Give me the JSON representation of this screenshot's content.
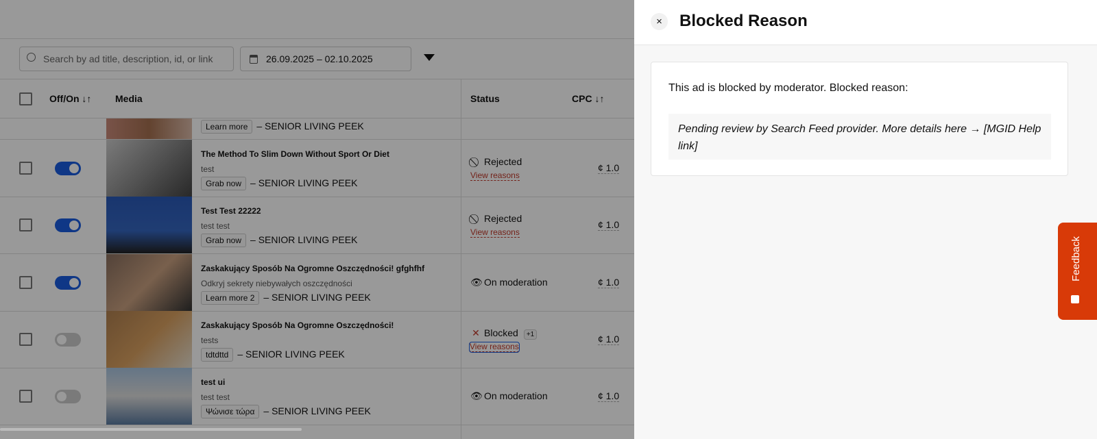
{
  "toolbar": {
    "search_placeholder": "Search by ad title, description, id, or link",
    "date_range": "26.09.2025 – 02.10.2025"
  },
  "table": {
    "headers": {
      "toggle": "Off/On ↓↑",
      "media": "Media",
      "status": "Status",
      "cpc": "CPC ↓↑"
    },
    "partial_row": {
      "cta": "Learn more",
      "brand": "– SENIOR LIVING PEEK"
    },
    "rows": [
      {
        "enabled": true,
        "title": "The Method To Slim Down Without Sport Or Diet",
        "desc": "test",
        "cta": "Grab now",
        "brand": "– SENIOR LIVING PEEK",
        "status": "Rejected",
        "status_icon": "block-icon",
        "reasons": "View reasons",
        "cpc": "¢ 1.0"
      },
      {
        "enabled": true,
        "title": "Test Test 22222",
        "desc": "test test",
        "cta": "Grab now",
        "brand": "– SENIOR LIVING PEEK",
        "status": "Rejected",
        "status_icon": "block-icon",
        "reasons": "View reasons",
        "cpc": "¢ 1.0"
      },
      {
        "enabled": true,
        "title": "Zaskakujący Sposób Na Ogromne Oszczędności! gfghfhf",
        "desc": "Odkryj sekrety niebywałych oszczędności",
        "cta": "Learn more 2",
        "brand": "– SENIOR LIVING PEEK",
        "status": "On moderation",
        "status_icon": "eye-icon",
        "cpc": "¢ 1.0"
      },
      {
        "enabled": false,
        "title": "Zaskakujący Sposób Na Ogromne Oszczędności!",
        "desc": "tests",
        "cta": "tdtdttd",
        "brand": "– SENIOR LIVING PEEK",
        "status": "Blocked",
        "status_icon": "x-icon",
        "extra": "+1",
        "reasons": "View reasons",
        "cpc": "¢ 1.0"
      },
      {
        "enabled": false,
        "title": "test ui",
        "desc": "test test",
        "cta": "Ψώνισε τώρα",
        "brand": "– SENIOR LIVING PEEK",
        "status": "On moderation",
        "status_icon": "eye-icon",
        "cpc": "¢ 1.0"
      }
    ]
  },
  "panel": {
    "title": "Blocked Reason",
    "close": "×",
    "lead": "This ad is blocked by moderator. Blocked reason:",
    "reason": "Pending review by Search Feed provider. More details here → [MGID Help link]"
  },
  "feedback": {
    "label": "Feedback",
    "color": "#d83a08"
  }
}
